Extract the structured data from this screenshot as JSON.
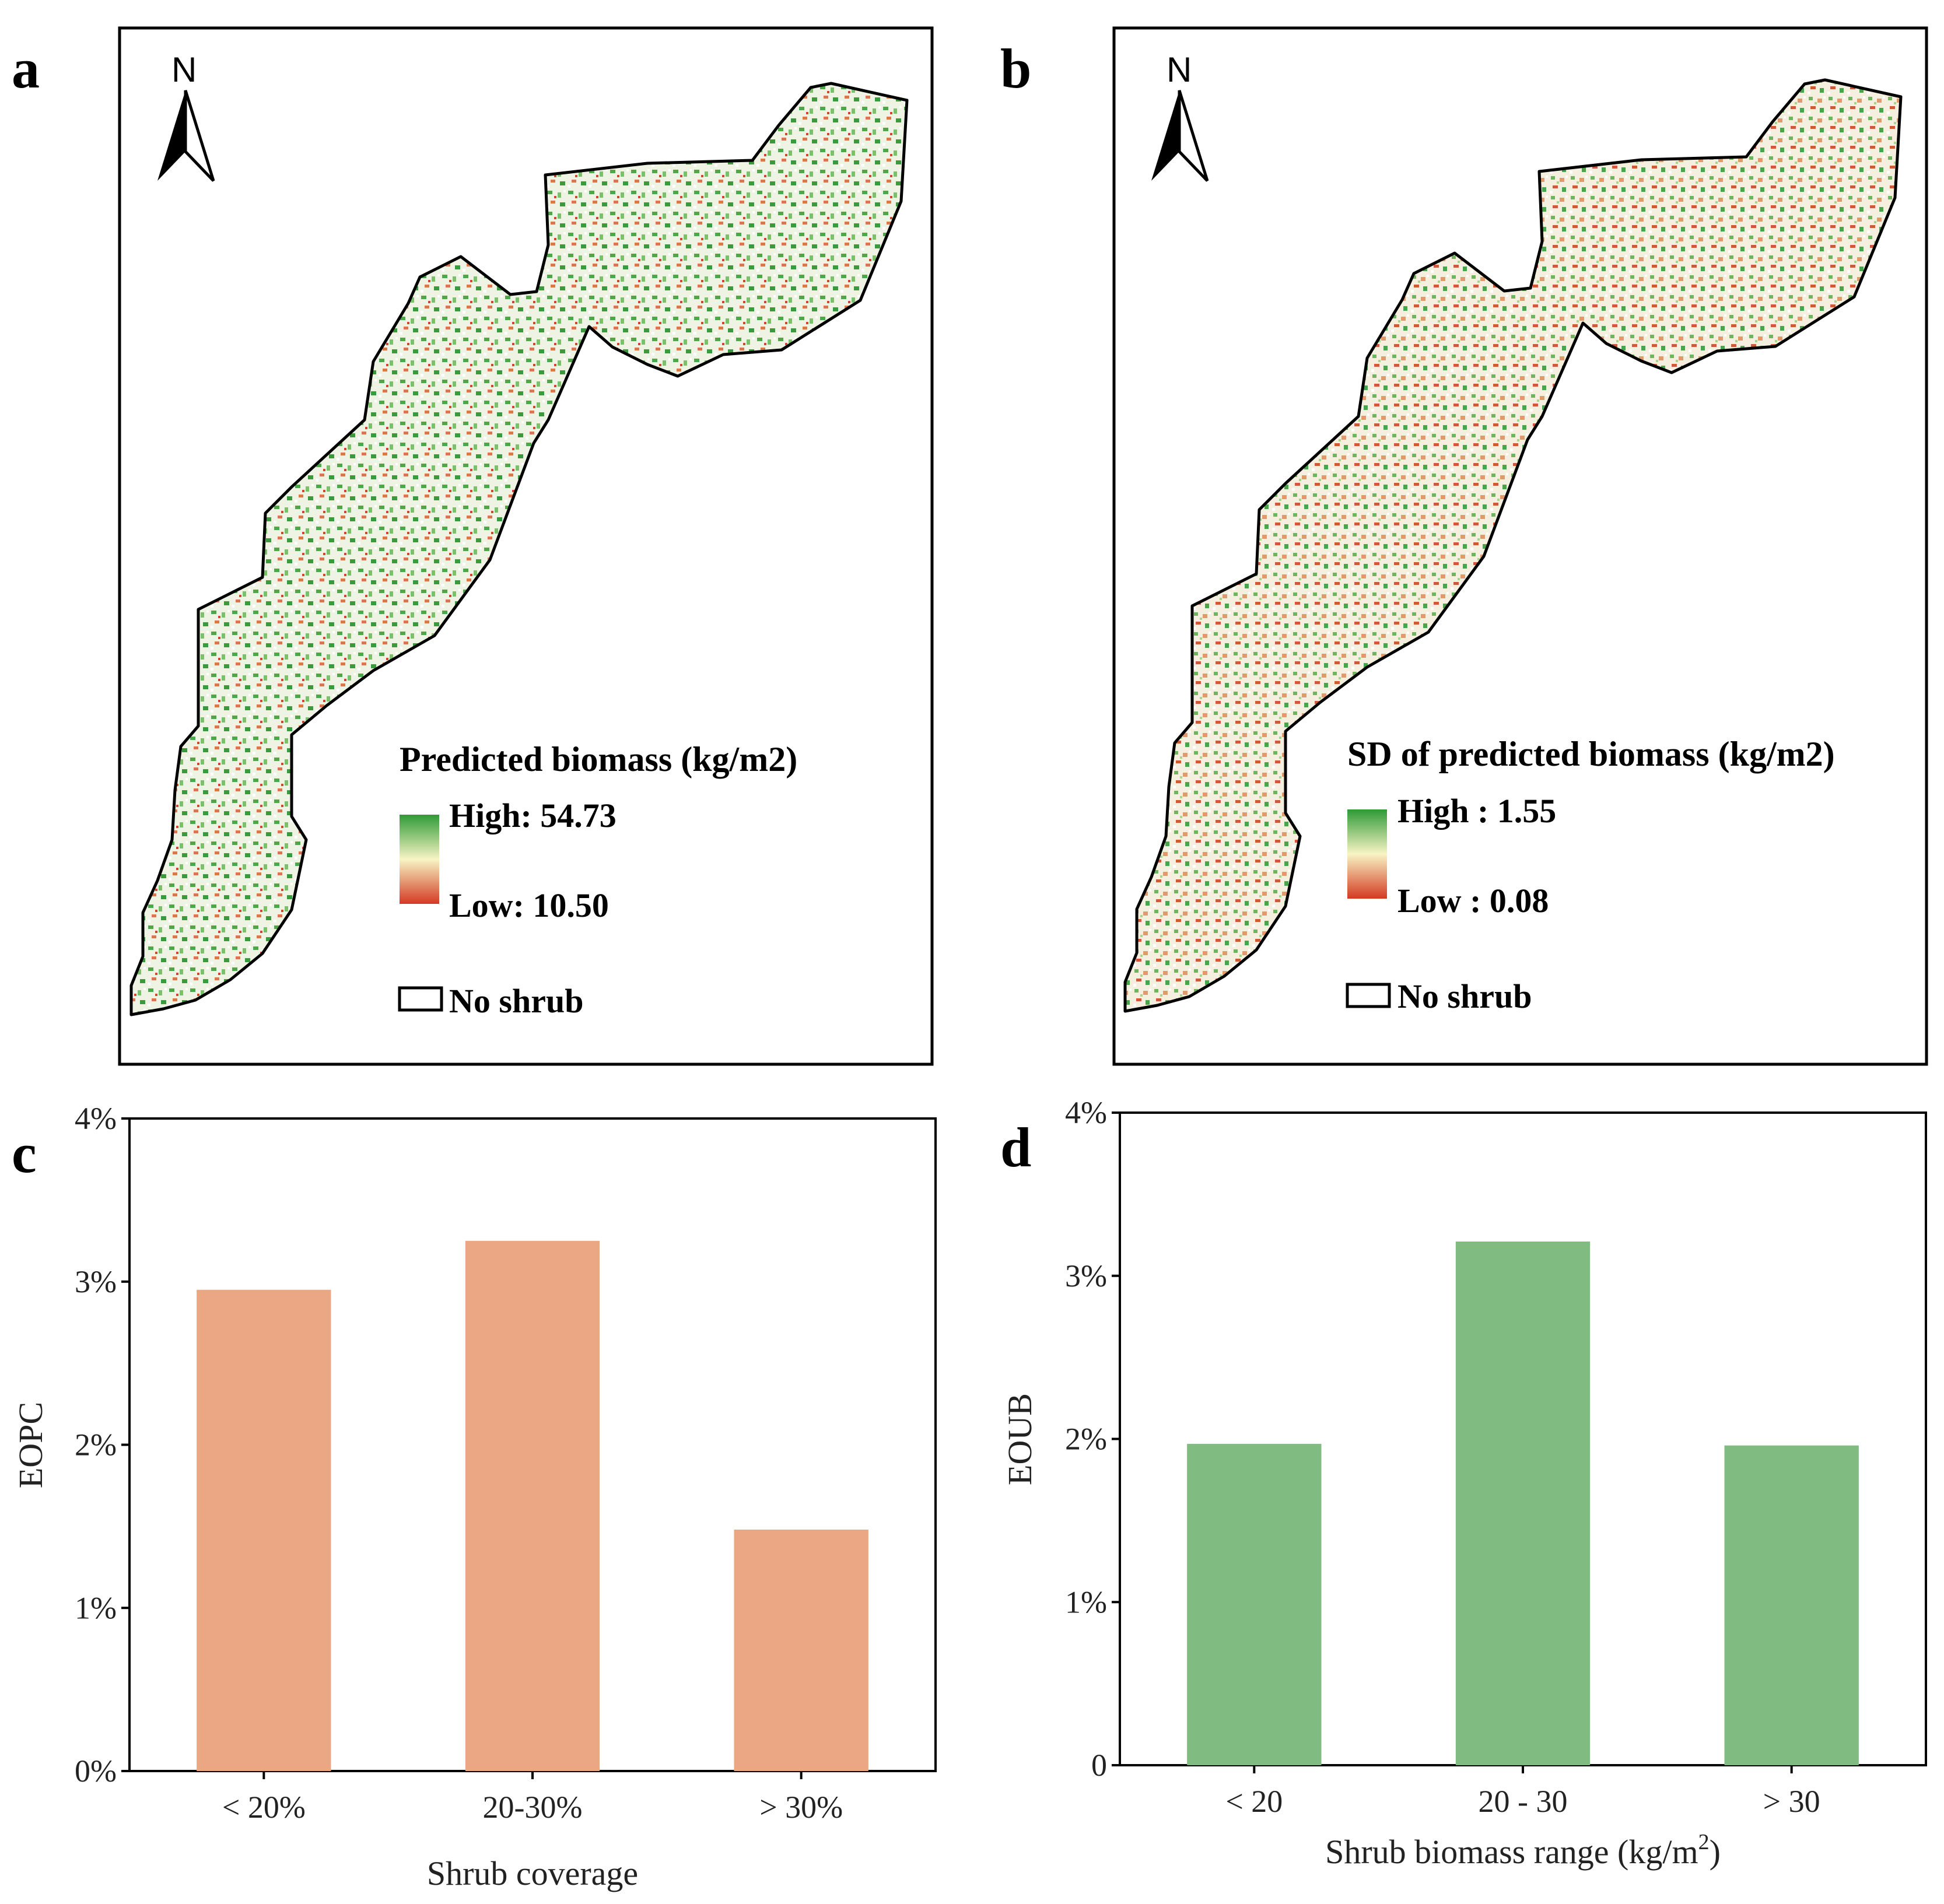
{
  "panels": {
    "a": {
      "letter": "a",
      "north": "N",
      "legend_title": "Predicted biomass (kg/m2)",
      "legend_high": "High: 54.73",
      "legend_low": "Low: 10.50",
      "legend_noshrub": "No shrub",
      "colors": {
        "high": "#2e9a36",
        "mid": "#f8f4c4",
        "low": "#d33a22"
      }
    },
    "b": {
      "letter": "b",
      "north": "N",
      "legend_title": "SD of predicted biomass (kg/m2)",
      "legend_high": "High : 1.55",
      "legend_low": "Low : 0.08",
      "legend_noshrub": "No shrub",
      "colors": {
        "high": "#2e9a36",
        "mid": "#f8f4c4",
        "low": "#d33a22"
      }
    }
  },
  "chart_data": [
    {
      "panel": "c",
      "type": "bar",
      "categories": [
        "< 20%",
        "20-30%",
        "> 30%"
      ],
      "values": [
        2.95,
        3.25,
        1.48
      ],
      "ylim": [
        0,
        4
      ],
      "yticks": [
        "0%",
        "1%",
        "2%",
        "3%",
        "4%"
      ],
      "xlabel": "Shrub coverage",
      "ylabel": "EOPC",
      "color": "#eba684"
    },
    {
      "panel": "d",
      "type": "bar",
      "categories": [
        "< 20",
        "20 - 30",
        "> 30"
      ],
      "values": [
        1.97,
        3.21,
        1.96
      ],
      "ylim": [
        0,
        4
      ],
      "yticks": [
        "0",
        "1%",
        "2%",
        "3%",
        "4%"
      ],
      "xlabel": "Shrub biomass range (kg/m",
      "xlabel_sup": "2",
      "xlabel_end": ")",
      "ylabel": "EOUB",
      "color": "#80bb81"
    }
  ]
}
